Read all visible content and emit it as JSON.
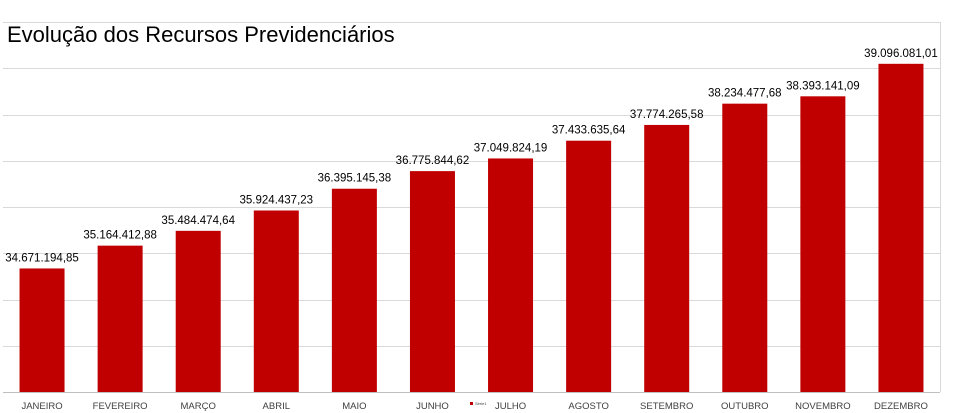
{
  "chart_data": {
    "type": "bar",
    "title": "Evolução dos Recursos Previdenciários",
    "xlabel": "",
    "ylabel": "",
    "categories": [
      "JANEIRO",
      "FEVEREIRO",
      "MARÇO",
      "ABRIL",
      "MAIO",
      "JUNHO",
      "JULHO",
      "AGOSTO",
      "SETEMBRO",
      "OUTUBRO",
      "NOVEMBRO",
      "DEZEMBRO"
    ],
    "series": [
      {
        "name": "Série1",
        "color": "#C00000",
        "values": [
          34671194.85,
          35164412.88,
          35484474.64,
          35924437.23,
          36395145.38,
          36775844.62,
          37049824.19,
          37433635.64,
          37774265.58,
          38234477.68,
          38393141.09,
          39096081.01
        ],
        "labels": [
          "34.671.194,85",
          "35.164.412,88",
          "35.484.474,64",
          "35.924.437,23",
          "36.395.145,38",
          "36.775.844,62",
          "37.049.824,19",
          "37.433.635,64",
          "37.774.265,58",
          "38.234.477,68",
          "38.393.141,09",
          "39.096.081,01"
        ]
      }
    ],
    "ylim": [
      32000000,
      40000000
    ],
    "grid": true,
    "legend": "bottom"
  }
}
